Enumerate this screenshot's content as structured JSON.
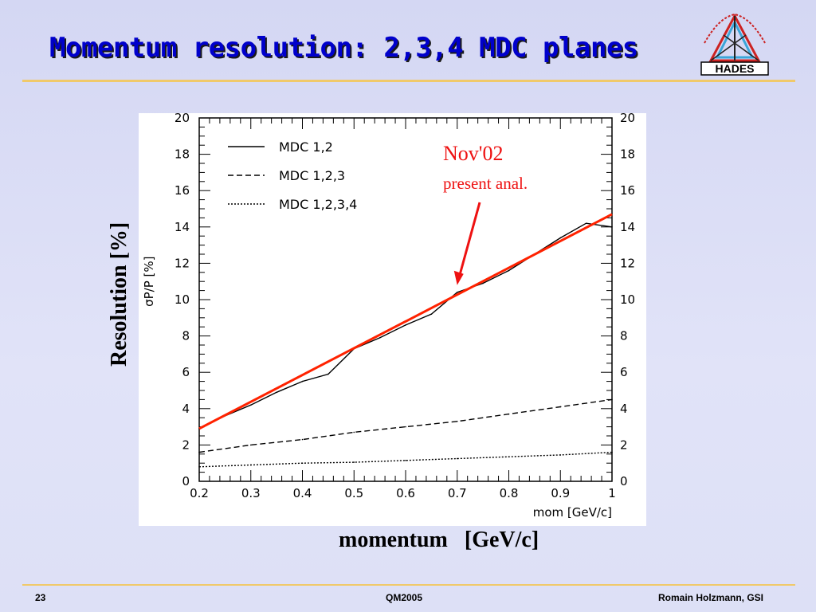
{
  "slide": {
    "title": "Momentum resolution: 2,3,4 MDC planes",
    "logo_text": "HADES",
    "outer_ylabel": "Resolution   [%]",
    "outer_xlabel": "momentum   [GeV/c]",
    "footer": {
      "page": "23",
      "center": "QM2005",
      "right": "Romain Holzmann, GSI"
    }
  },
  "chart_data": {
    "type": "line",
    "xlabel": "mom [GeV/c]",
    "ylabel": "σP/P [%]",
    "xlim": [
      0.2,
      1.0
    ],
    "ylim": [
      0,
      20
    ],
    "xticks": [
      "0.2",
      "0.3",
      "0.4",
      "0.5",
      "0.6",
      "0.7",
      "0.8",
      "0.9",
      "1"
    ],
    "yticks": [
      "0",
      "2",
      "4",
      "6",
      "8",
      "10",
      "12",
      "14",
      "16",
      "18",
      "20"
    ],
    "legend_position": "top-left",
    "series": [
      {
        "name": "MDC 1,2",
        "style": "solid",
        "color": "#000000",
        "x": [
          0.2,
          0.25,
          0.3,
          0.35,
          0.4,
          0.45,
          0.5,
          0.55,
          0.6,
          0.65,
          0.7,
          0.75,
          0.8,
          0.85,
          0.9,
          0.95,
          1.0
        ],
        "values": [
          2.9,
          3.6,
          4.2,
          4.9,
          5.5,
          5.9,
          7.3,
          7.9,
          8.6,
          9.2,
          10.4,
          10.9,
          11.6,
          12.5,
          13.4,
          14.2,
          14.0
        ]
      },
      {
        "name": "MDC 1,2,3",
        "style": "dashed",
        "color": "#000000",
        "x": [
          0.2,
          0.3,
          0.4,
          0.5,
          0.6,
          0.7,
          0.8,
          0.9,
          1.0
        ],
        "values": [
          1.6,
          2.0,
          2.3,
          2.7,
          3.0,
          3.3,
          3.7,
          4.1,
          4.5
        ]
      },
      {
        "name": "MDC 1,2,3,4",
        "style": "dotted",
        "color": "#000000",
        "x": [
          0.2,
          0.3,
          0.4,
          0.5,
          0.6,
          0.7,
          0.8,
          0.9,
          1.0
        ],
        "values": [
          0.8,
          0.9,
          1.0,
          1.05,
          1.15,
          1.25,
          1.35,
          1.45,
          1.6
        ]
      }
    ],
    "fit_line": {
      "color": "#ff2200",
      "x": [
        0.2,
        1.0
      ],
      "values": [
        2.9,
        14.7
      ]
    },
    "annotation": {
      "title": "Nov'02",
      "subtitle": "present anal.",
      "color": "#ee1111",
      "arrow_to": {
        "x": 0.7,
        "y": 10.8
      }
    }
  }
}
